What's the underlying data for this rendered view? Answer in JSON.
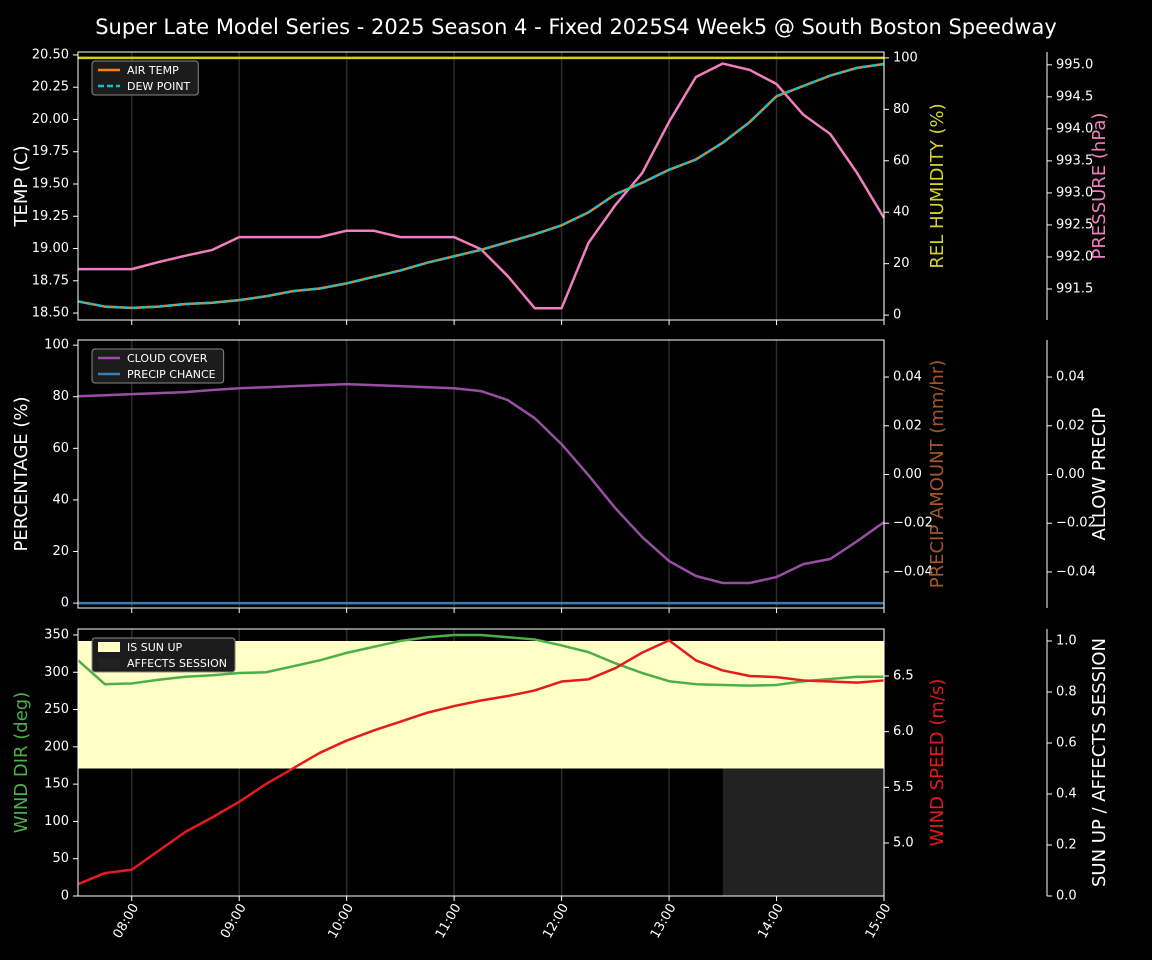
{
  "title": "Super Late Model Series - 2025 Season 4 - Fixed 2025S4 Week5 @ South Boston Speedway",
  "x": [
    "07:30",
    "07:45",
    "08:00",
    "08:15",
    "08:30",
    "08:45",
    "09:00",
    "09:15",
    "09:30",
    "09:45",
    "10:00",
    "10:15",
    "10:30",
    "10:45",
    "11:00",
    "11:15",
    "11:30",
    "11:45",
    "12:00",
    "12:15",
    "12:30",
    "12:45",
    "13:00",
    "13:15",
    "13:30",
    "13:45",
    "14:00",
    "14:15",
    "14:30",
    "14:45",
    "15:00"
  ],
  "xlim": [
    "07:30",
    "15:00"
  ],
  "xticks": [
    "08:00",
    "09:00",
    "10:00",
    "11:00",
    "12:00",
    "13:00",
    "14:00",
    "15:00"
  ],
  "chart_data": [
    {
      "type": "line",
      "ylabel": "TEMP (C)",
      "ylabel_color": "#ffffff",
      "ylim": [
        18.446,
        20.523
      ],
      "yticks": [
        {
          "value": 18.5,
          "label": "18.50"
        },
        18.75,
        {
          "value": 19,
          "label": "19.00"
        },
        19.25,
        {
          "value": 19.5,
          "label": "19.50"
        },
        19.75,
        {
          "value": 20,
          "label": "20.00"
        },
        20.25,
        {
          "value": 20.5,
          "label": "20.50"
        }
      ],
      "y2label": "REL HUMIDITY (%)",
      "y2label_color": "#d4d42a",
      "y2lim": [
        -1.9,
        102.3
      ],
      "y2ticks": [
        0,
        20,
        40,
        60,
        80,
        100
      ],
      "y3label": "PRESSURE (hPa)",
      "y3label_color": "#f07fc0",
      "y3lim": [
        991.016,
        995.2
      ],
      "y3ticks": [
        991.5,
        {
          "value": 992,
          "label": "992.0"
        },
        992.5,
        {
          "value": 993,
          "label": "993.0"
        },
        993.5,
        {
          "value": 994,
          "label": "994.0"
        },
        994.5,
        {
          "value": 995,
          "label": "995.0"
        }
      ],
      "series": [
        {
          "color": "#d4d400",
          "axis": "y2",
          "values": [
            100,
            100,
            100,
            100,
            100,
            100,
            100,
            100,
            100,
            100,
            100,
            100,
            100,
            100,
            100,
            100,
            100,
            100,
            100,
            100,
            100,
            100,
            100,
            100,
            100,
            100,
            100,
            100,
            100,
            100,
            100
          ]
        },
        {
          "color": "#f07fc0",
          "axis": "y3",
          "values": [
            991.81,
            991.81,
            991.81,
            991.92,
            992.02,
            992.11,
            992.31,
            992.31,
            992.31,
            992.31,
            992.41,
            992.41,
            992.31,
            992.31,
            992.31,
            992.12,
            991.7,
            991.2,
            991.2,
            992.22,
            992.81,
            993.31,
            994.11,
            994.81,
            995.02,
            994.92,
            994.7,
            994.22,
            993.92,
            993.31,
            992.61
          ]
        },
        {
          "name": "AIR TEMP",
          "color": "#ff7f0e",
          "axis": "y",
          "values": [
            18.59,
            18.55,
            18.54,
            18.55,
            18.57,
            18.58,
            18.6,
            18.63,
            18.67,
            18.69,
            18.73,
            18.78,
            18.83,
            18.89,
            18.94,
            18.99,
            19.05,
            19.11,
            19.18,
            19.28,
            19.42,
            19.51,
            19.61,
            19.69,
            19.82,
            19.98,
            20.18,
            20.26,
            20.34,
            20.4,
            20.43
          ]
        },
        {
          "name": "DEW POINT",
          "color": "#17becf",
          "axis": "y",
          "dash": true,
          "values": [
            18.59,
            18.55,
            18.54,
            18.55,
            18.57,
            18.58,
            18.6,
            18.63,
            18.67,
            18.69,
            18.73,
            18.78,
            18.83,
            18.89,
            18.94,
            18.99,
            19.05,
            19.11,
            19.18,
            19.28,
            19.42,
            19.51,
            19.61,
            19.69,
            19.82,
            19.98,
            20.18,
            20.26,
            20.34,
            20.4,
            20.43
          ]
        }
      ]
    },
    {
      "type": "line",
      "ylabel": "PERCENTAGE (%)",
      "ylabel_color": "#ffffff",
      "ylim": [
        -1.9,
        102
      ],
      "yticks": [
        0,
        20,
        40,
        60,
        80,
        100
      ],
      "y2label": "PRECIP AMOUNT (mm/hr)",
      "y2label_color": "#a65628",
      "y2lim": [
        -0.0548,
        0.0552
      ],
      "y2ticks": [
        {
          "value": -0.04,
          "label": "−0.04"
        },
        {
          "value": -0.02,
          "label": "−0.02"
        },
        {
          "value": 0,
          "label": "0.00"
        },
        0.02,
        0.04
      ],
      "y3label": "ALLOW PRECIP",
      "y3label_color": "#ffffff",
      "y3lim": [
        -0.0548,
        0.0552
      ],
      "y3ticks": [
        {
          "value": -0.04,
          "label": "−0.04"
        },
        {
          "value": -0.02,
          "label": "−0.02"
        },
        {
          "value": 0,
          "label": "0.00"
        },
        0.02,
        0.04
      ],
      "series": [
        {
          "name": "CLOUD COVER",
          "color": "#984ea3",
          "axis": "y",
          "values": [
            80.2,
            80.6,
            81,
            81.4,
            81.8,
            82.6,
            83.3,
            83.7,
            84.1,
            84.5,
            84.9,
            84.5,
            84.1,
            83.7,
            83.3,
            82.2,
            78.7,
            71.7,
            61.6,
            49.6,
            36.8,
            25.6,
            16.3,
            10.5,
            7.8,
            7.8,
            10.1,
            15.1,
            17.1,
            24,
            31.4
          ]
        },
        {
          "name": "PRECIP CHANCE",
          "color": "#377eb8",
          "axis": "y",
          "values": [
            0,
            0,
            0,
            0,
            0,
            0,
            0,
            0,
            0,
            0,
            0,
            0,
            0,
            0,
            0,
            0,
            0,
            0,
            0,
            0,
            0,
            0,
            0,
            0,
            0,
            0,
            0,
            0,
            0,
            0,
            0
          ]
        }
      ]
    },
    {
      "type": "line",
      "ylabel": "WIND DIR (deg)",
      "ylabel_color": "#4daf4a",
      "ylim": [
        0,
        358
      ],
      "yticks": [
        0,
        50,
        100,
        150,
        200,
        250,
        300,
        350
      ],
      "y2label": "WIND SPEED (m/s)",
      "y2label_color": "#e41a1c",
      "y2lim": [
        4.524,
        6.922
      ],
      "y2ticks": [
        {
          "value": 5,
          "label": "5.0"
        },
        5.5,
        {
          "value": 6,
          "label": "6.0"
        },
        6.5
      ],
      "y3label": "SUN UP / AFFECTS SESSION",
      "y3label_color": "#ffffff",
      "y3lim": [
        0,
        1.047
      ],
      "y3ticks": [
        {
          "value": 0,
          "label": "0.0"
        },
        0.2,
        0.4,
        0.6,
        0.8,
        {
          "value": 1,
          "label": "1.0"
        }
      ],
      "series": [
        {
          "name": "IS SUN UP",
          "color": "#ffffc6",
          "axis": "y3",
          "style": "fill",
          "values": [
            1,
            1,
            1,
            1,
            1,
            1,
            1,
            1,
            1,
            1,
            1,
            1,
            1,
            1,
            1,
            1,
            1,
            1,
            1,
            1,
            1,
            1,
            1,
            1,
            1,
            1,
            1,
            1,
            1,
            1,
            1
          ]
        },
        {
          "name": "AFFECTS SESSION",
          "color": "#222222",
          "axis": "y3",
          "style": "fill",
          "values": [
            0,
            0,
            0,
            0,
            0,
            0,
            0,
            0,
            0,
            0,
            0,
            0,
            0,
            0,
            0,
            0,
            0,
            0,
            0,
            0,
            0,
            0,
            0,
            0,
            1,
            1,
            1,
            1,
            1,
            1,
            1
          ]
        },
        {
          "color": "#4daf4a",
          "axis": "y",
          "values": [
            316,
            284,
            285,
            290,
            294,
            296,
            299,
            300,
            308,
            316,
            326,
            334,
            342,
            347,
            350,
            350,
            347,
            344,
            336,
            327,
            312,
            299,
            288,
            284,
            283,
            282,
            283,
            288,
            291,
            294,
            294
          ]
        },
        {
          "color": "#e41a1c",
          "axis": "y2",
          "values": [
            4.63,
            4.73,
            4.76,
            4.93,
            5.1,
            5.23,
            5.37,
            5.53,
            5.67,
            5.81,
            5.92,
            6.01,
            6.09,
            6.17,
            6.23,
            6.28,
            6.32,
            6.37,
            6.45,
            6.47,
            6.57,
            6.71,
            6.82,
            6.64,
            6.55,
            6.5,
            6.49,
            6.46,
            6.45,
            6.44,
            6.46
          ]
        }
      ]
    }
  ]
}
